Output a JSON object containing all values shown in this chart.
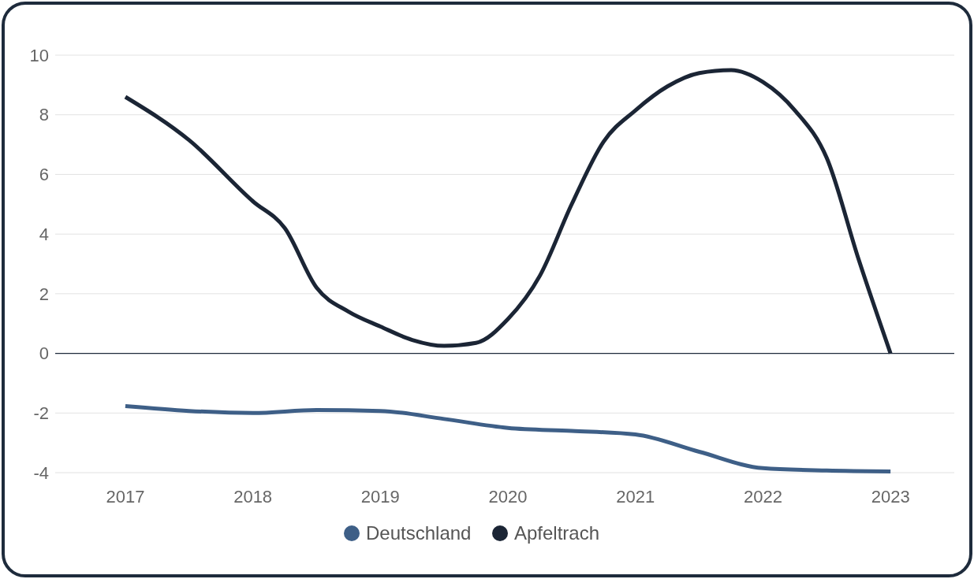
{
  "chart_data": {
    "type": "line",
    "xlim": [
      2016.45,
      2023.5
    ],
    "xticks": [
      2017,
      2018,
      2019,
      2020,
      2021,
      2022,
      2023
    ],
    "ylim": [
      -4,
      10
    ],
    "yticks": [
      -4,
      -2,
      0,
      2,
      4,
      6,
      8,
      10
    ],
    "grid": "y",
    "legend": "bottom",
    "marker": "none",
    "line_style": "solid",
    "ref_lines": [
      {
        "axis": "y",
        "value": 0,
        "color": "#1e2b3c"
      }
    ],
    "series": [
      {
        "name": "Deutschland",
        "color": "#3e5f87",
        "x": [
          2017,
          2017.5,
          2018,
          2018.5,
          2019,
          2019.5,
          2020,
          2020.5,
          2021,
          2021.5,
          2022,
          2022.5,
          2023
        ],
        "values": [
          -1.77,
          -1.93,
          -2.0,
          -1.9,
          -1.93,
          -2.2,
          -2.5,
          -2.6,
          -2.72,
          -3.3,
          -3.85,
          -3.93,
          -3.96
        ]
      },
      {
        "name": "Apfeltrach",
        "color": "#1b2535",
        "x": [
          2017,
          2017.5,
          2018,
          2018.25,
          2018.5,
          2018.75,
          2019,
          2019.25,
          2019.5,
          2019.75,
          2020,
          2020.25,
          2020.5,
          2020.75,
          2021,
          2021.25,
          2021.5,
          2021.75,
          2022,
          2022.25,
          2022.5,
          2022.75,
          2023
        ],
        "values": [
          8.6,
          7.15,
          5.1,
          4.2,
          2.2,
          1.4,
          0.9,
          0.45,
          0.25,
          0.35,
          1.15,
          2.6,
          5.0,
          7.1,
          8.15,
          8.95,
          9.4,
          9.5,
          9.1,
          8.15,
          6.55,
          3.15,
          0
        ]
      }
    ]
  }
}
